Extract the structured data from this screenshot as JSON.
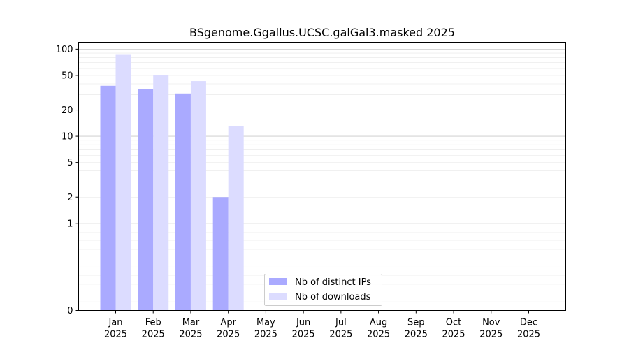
{
  "chart_data": {
    "type": "bar",
    "title": "BSgenome.Ggallus.UCSC.galGal3.masked 2025",
    "xlabel": "",
    "ylabel": "",
    "y_scale": "symlog",
    "y_ticks": [
      0,
      1,
      2,
      5,
      10,
      20,
      50,
      100
    ],
    "y_tick_labels": [
      "0",
      "1",
      "2",
      "5",
      "10",
      "20",
      "50",
      "100"
    ],
    "ylim": [
      0,
      120
    ],
    "grid": true,
    "legend_position": "bottom-center",
    "categories": [
      [
        "Jan",
        "2025"
      ],
      [
        "Feb",
        "2025"
      ],
      [
        "Mar",
        "2025"
      ],
      [
        "Apr",
        "2025"
      ],
      [
        "May",
        "2025"
      ],
      [
        "Jun",
        "2025"
      ],
      [
        "Jul",
        "2025"
      ],
      [
        "Aug",
        "2025"
      ],
      [
        "Sep",
        "2025"
      ],
      [
        "Oct",
        "2025"
      ],
      [
        "Nov",
        "2025"
      ],
      [
        "Dec",
        "2025"
      ]
    ],
    "series": [
      {
        "name": "Nb of distinct IPs",
        "color": "#aaaaff",
        "values": [
          38,
          35,
          31,
          2,
          0,
          0,
          0,
          0,
          0,
          0,
          0,
          0
        ]
      },
      {
        "name": "Nb of downloads",
        "color": "#dcdcff",
        "values": [
          86,
          50,
          43,
          13,
          0,
          0,
          0,
          0,
          0,
          0,
          0,
          0
        ]
      }
    ]
  }
}
